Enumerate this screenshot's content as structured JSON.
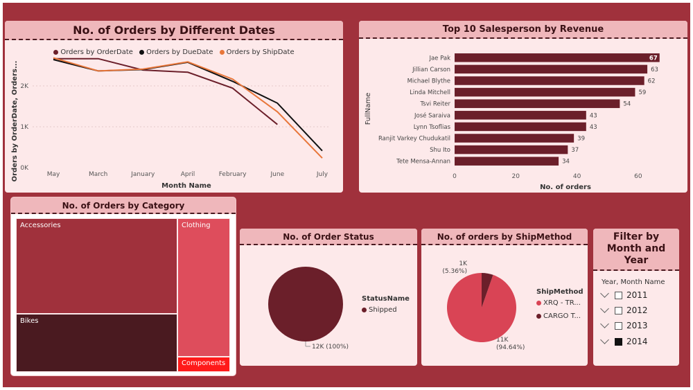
{
  "orders_by_date": {
    "title": "No. of Orders by Different Dates",
    "legend": [
      {
        "name": "Orders by OrderDate",
        "color": "#6b1f2a"
      },
      {
        "name": "Orders by DueDate",
        "color": "#111111"
      },
      {
        "name": "Orders by ShipDate",
        "color": "#e8763a"
      }
    ],
    "xlabel": "Month Name",
    "ylabel": "Orders by OrderDate, Orders...",
    "y_ticks": [
      "0K",
      "1K",
      "2K"
    ],
    "chart_data": {
      "type": "line",
      "categories": [
        "May",
        "March",
        "January",
        "April",
        "February",
        "June",
        "July"
      ],
      "series": [
        {
          "name": "Orders by OrderDate",
          "values": [
            2400,
            2400,
            2150,
            2100,
            1750,
            950,
            null
          ]
        },
        {
          "name": "Orders by DueDate",
          "values": [
            2380,
            2130,
            2160,
            2320,
            1900,
            1420,
            370
          ]
        },
        {
          "name": "Orders by ShipDate",
          "values": [
            2420,
            2130,
            2170,
            2330,
            1950,
            1230,
            210
          ]
        }
      ],
      "ylim": [
        0,
        2700
      ]
    }
  },
  "salesperson": {
    "title": "Top 10 Salesperson by Revenue",
    "ylabel": "FullName",
    "xlabel": "No. of orders",
    "x_ticks": [
      "0",
      "20",
      "40",
      "60"
    ],
    "chart_data": {
      "type": "bar",
      "categories": [
        "Jae Pak",
        "Jillian Carson",
        "Michael Blythe",
        "Linda Mitchell",
        "Tsvi Reiter",
        "José Saraiva",
        "Lynn Tsoflias",
        "Ranjit Varkey Chudukatil",
        "Shu Ito",
        "Tete Mensa-Annan"
      ],
      "values": [
        67,
        63,
        62,
        59,
        54,
        43,
        43,
        39,
        37,
        34
      ],
      "xlim": [
        0,
        70
      ]
    }
  },
  "category": {
    "title": "No. of Orders by Category",
    "cells": [
      {
        "label": "Accessories",
        "color": "#a0313c"
      },
      {
        "label": "Bikes",
        "color": "#4a1a20"
      },
      {
        "label": "Clothing",
        "color": "#de4d5c"
      },
      {
        "label": "Components",
        "color": "#ff1a1a"
      }
    ]
  },
  "order_status": {
    "title": "No. of Order Status",
    "legend_title": "StatusName",
    "legend_item": "Shipped",
    "slice_label": "12K (100%)",
    "color": "#6b1f2a"
  },
  "ship_method": {
    "title": "No. of orders by ShipMethod",
    "legend_title": "ShipMethod",
    "items": [
      {
        "label": "XRQ - TR...",
        "color": "#d94455",
        "percent": 94.64
      },
      {
        "label": "CARGO T...",
        "color": "#6b1f2a",
        "percent": 5.36
      }
    ],
    "label_big_1": "11K",
    "label_big_2": "(94.64%)",
    "label_small_1": "1K",
    "label_small_2": "(5.36%)"
  },
  "filter": {
    "title_line1": "Filter by",
    "title_line2": "Month and",
    "title_line3": "Year",
    "subtitle": "Year, Month Name",
    "years": [
      {
        "label": "2011",
        "checked": false
      },
      {
        "label": "2012",
        "checked": false
      },
      {
        "label": "2013",
        "checked": false
      },
      {
        "label": "2014",
        "checked": true
      }
    ]
  }
}
